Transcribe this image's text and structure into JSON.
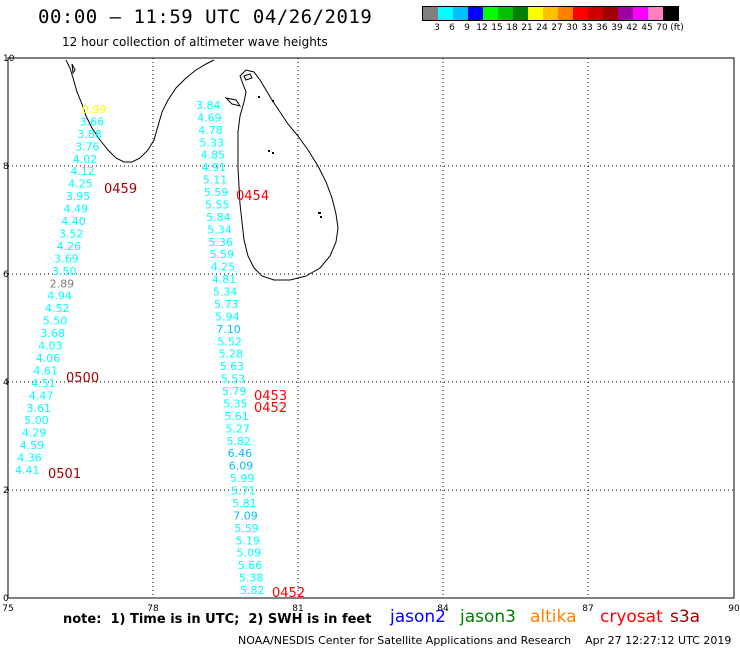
{
  "header": {
    "title": "00:00 — 11:59 UTC 04/26/2019",
    "subtitle": "12 hour collection of altimeter wave heights"
  },
  "legend": {
    "colors": [
      "#808080",
      "#00ffff",
      "#00c0ff",
      "#0000ff",
      "#00ff00",
      "#00c000",
      "#008000",
      "#ffff00",
      "#ffc000",
      "#ff8000",
      "#ff0000",
      "#d00000",
      "#a00000",
      "#a000a0",
      "#ff00ff",
      "#ff80c0",
      "#000000"
    ],
    "labels": [
      "3",
      "6",
      "9",
      "12",
      "15",
      "18",
      "21",
      "24",
      "27",
      "30",
      "33",
      "36",
      "39",
      "42",
      "45",
      "70",
      "(ft)"
    ]
  },
  "axes": {
    "x_ticks": [
      "75",
      "78",
      "81",
      "84",
      "87",
      "90"
    ],
    "y_ticks": [
      "0",
      "2",
      "4",
      "6",
      "8",
      "10"
    ]
  },
  "track_labels": [
    {
      "text": "0459",
      "color": "#a00000"
    },
    {
      "text": "0500",
      "color": "#a00000"
    },
    {
      "text": "0501",
      "color": "#a00000"
    },
    {
      "text": "0454",
      "color": "#ff0000"
    },
    {
      "text": "0453",
      "color": "#ff0000"
    },
    {
      "text": "0452",
      "color": "#ff0000"
    },
    {
      "text": "0452",
      "color": "#ff0000"
    }
  ],
  "wave_values": {
    "track_west": [
      "0.99",
      "3.66",
      "3.88",
      "3.76",
      "4.02",
      "4.12",
      "4.25",
      "3.95",
      "4.49",
      "4.40",
      "3.52",
      "4.26",
      "3.69",
      "3.50",
      "2.89",
      "4.94",
      "4.52",
      "5.50",
      "3.68",
      "4.03",
      "4.06",
      "4.61",
      "4.51",
      "4.47",
      "3.61",
      "5.00",
      "4.29",
      "4.59",
      "4.36",
      "4.41"
    ],
    "track_east": [
      "3.84",
      "4.69",
      "4.78",
      "5.33",
      "4.85",
      "4.91",
      "5.11",
      "5.59",
      "5.55",
      "5.84",
      "5.34",
      "5.36",
      "5.59",
      "4.25",
      "4.81",
      "5.34",
      "5.73",
      "5.94",
      "7.10",
      "5.52",
      "5.28",
      "5.63",
      "5.53",
      "5.79",
      "5.35",
      "5.61",
      "5.27",
      "5.82",
      "6.46",
      "6.09",
      "5.99",
      "5.71",
      "5.81",
      "7.09",
      "5.59",
      "5.19",
      "5.09",
      "5.66",
      "5.38",
      "5.82"
    ]
  },
  "footer": {
    "note": "note:  1) Time is in UTC;  2) SWH is in feet",
    "satellites": [
      {
        "name": "jason2",
        "color": "#0000ff"
      },
      {
        "name": "jason3",
        "color": "#008000"
      },
      {
        "name": "altika",
        "color": "#ff8000"
      },
      {
        "name": "cryosat",
        "color": "#ff0000"
      },
      {
        "name": "s3a",
        "color": "#a00000"
      }
    ],
    "credit": "NOAA/NESDIS Center for Satellite Applications and Research    Apr 27 12:27:12 UTC 2019"
  }
}
